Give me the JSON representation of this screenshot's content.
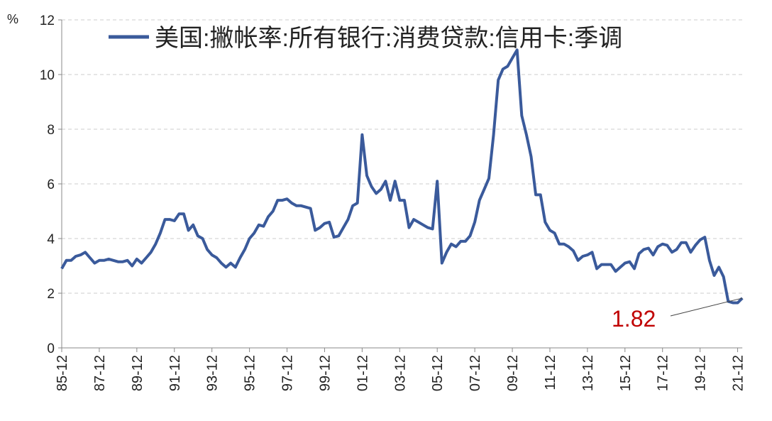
{
  "chart_data": {
    "type": "line",
    "y_unit": "%",
    "categories": [
      "85-12",
      null,
      null,
      null,
      null,
      null,
      null,
      null,
      "87-12",
      null,
      null,
      null,
      null,
      null,
      null,
      null,
      "89-12",
      null,
      null,
      null,
      null,
      null,
      null,
      null,
      "91-12",
      null,
      null,
      null,
      null,
      null,
      null,
      null,
      "93-12",
      null,
      null,
      null,
      null,
      null,
      null,
      null,
      "95-12",
      null,
      null,
      null,
      null,
      null,
      null,
      null,
      "97-12",
      null,
      null,
      null,
      null,
      null,
      null,
      null,
      "99-12",
      null,
      null,
      null,
      null,
      null,
      null,
      null,
      "01-12",
      null,
      null,
      null,
      null,
      null,
      null,
      null,
      "03-12",
      null,
      null,
      null,
      null,
      null,
      null,
      null,
      "05-12",
      null,
      null,
      null,
      null,
      null,
      null,
      null,
      "07-12",
      null,
      null,
      null,
      null,
      null,
      null,
      null,
      "09-12",
      null,
      null,
      null,
      null,
      null,
      null,
      null,
      "11-12",
      null,
      null,
      null,
      null,
      null,
      null,
      null,
      "13-12",
      null,
      null,
      null,
      null,
      null,
      null,
      null,
      "15-12",
      null,
      null,
      null,
      null,
      null,
      null,
      null,
      "17-12",
      null,
      null,
      null,
      null,
      null,
      null,
      null,
      "19-12",
      null,
      null,
      null,
      null,
      null,
      null,
      null,
      "21-12",
      null
    ],
    "series": [
      {
        "name": "美国:撇帐率:所有银行:消费贷款:信用卡:季调",
        "color": "#3a5a9b",
        "values": [
          2.9,
          3.2,
          3.2,
          3.35,
          3.4,
          3.5,
          3.3,
          3.1,
          3.2,
          3.2,
          3.25,
          3.2,
          3.15,
          3.15,
          3.2,
          3.0,
          3.25,
          3.1,
          3.3,
          3.5,
          3.8,
          4.2,
          4.7,
          4.7,
          4.65,
          4.9,
          4.9,
          4.3,
          4.5,
          4.1,
          4.0,
          3.6,
          3.4,
          3.3,
          3.1,
          2.95,
          3.1,
          2.95,
          3.3,
          3.6,
          4.0,
          4.2,
          4.5,
          4.45,
          4.8,
          5.0,
          5.4,
          5.4,
          5.45,
          5.3,
          5.2,
          5.2,
          5.15,
          5.1,
          4.3,
          4.4,
          4.55,
          4.6,
          4.05,
          4.1,
          4.4,
          4.7,
          5.2,
          5.3,
          7.8,
          6.3,
          5.9,
          5.65,
          5.8,
          6.1,
          5.4,
          6.1,
          5.4,
          5.4,
          4.4,
          4.7,
          4.6,
          4.5,
          4.4,
          4.35,
          6.1,
          3.1,
          3.5,
          3.8,
          3.7,
          3.9,
          3.9,
          4.1,
          4.6,
          5.4,
          5.8,
          6.2,
          7.8,
          9.8,
          10.2,
          10.3,
          10.6,
          10.9,
          8.5,
          7.8,
          7.0,
          5.6,
          5.6,
          4.6,
          4.3,
          4.2,
          3.8,
          3.8,
          3.7,
          3.55,
          3.2,
          3.35,
          3.4,
          3.5,
          2.9,
          3.05,
          3.05,
          3.05,
          2.8,
          2.95,
          3.1,
          3.15,
          2.9,
          3.45,
          3.6,
          3.65,
          3.4,
          3.7,
          3.8,
          3.75,
          3.5,
          3.6,
          3.85,
          3.85,
          3.5,
          3.75,
          3.95,
          4.05,
          3.2,
          2.65,
          2.95,
          2.6,
          1.7,
          1.65,
          1.65,
          1.82
        ]
      }
    ],
    "ylim": [
      0,
      12
    ],
    "yticks": [
      0,
      2,
      4,
      6,
      8,
      10,
      12
    ],
    "grid": true,
    "label_color": "#c00000"
  }
}
